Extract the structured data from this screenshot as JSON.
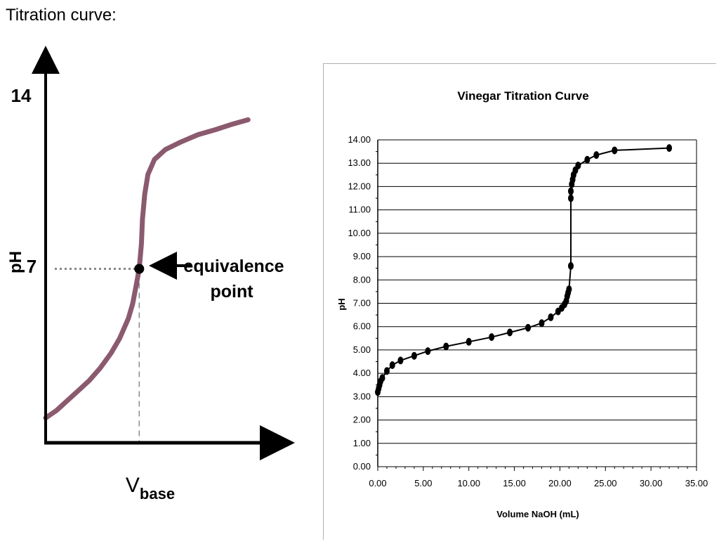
{
  "slide": {
    "title": "Titration curve:"
  },
  "chart_data": [
    {
      "type": "line",
      "kind": "schematic",
      "ylabel": "pH",
      "xlabel_main": "V",
      "xlabel_sub": "base",
      "y_ticks": [
        "14",
        "7"
      ],
      "annotation": {
        "line1": "equivalence",
        "line2": "point"
      },
      "equivalence": {
        "x": 0.43,
        "y": 7
      },
      "line_color": "#8b5a6e",
      "curve": [
        [
          0,
          1.0
        ],
        [
          0.05,
          1.3
        ],
        [
          0.1,
          1.7
        ],
        [
          0.15,
          2.1
        ],
        [
          0.2,
          2.5
        ],
        [
          0.25,
          3.0
        ],
        [
          0.3,
          3.6
        ],
        [
          0.34,
          4.2
        ],
        [
          0.38,
          5.0
        ],
        [
          0.4,
          5.6
        ],
        [
          0.415,
          6.3
        ],
        [
          0.43,
          7.0
        ],
        [
          0.44,
          8.0
        ],
        [
          0.445,
          9.0
        ],
        [
          0.455,
          10.0
        ],
        [
          0.47,
          10.8
        ],
        [
          0.5,
          11.4
        ],
        [
          0.55,
          11.8
        ],
        [
          0.62,
          12.1
        ],
        [
          0.7,
          12.4
        ],
        [
          0.78,
          12.6
        ],
        [
          0.85,
          12.8
        ],
        [
          0.93,
          13.0
        ]
      ]
    },
    {
      "type": "line",
      "title": "Vinegar Titration Curve",
      "xlabel": "Volume NaOH (mL)",
      "ylabel": "pH",
      "xlim": [
        0,
        35
      ],
      "ylim": [
        0,
        14
      ],
      "grid": true,
      "x_ticks": [
        "0.00",
        "5.00",
        "10.00",
        "15.00",
        "20.00",
        "25.00",
        "30.00",
        "35.00"
      ],
      "y_ticks": [
        "0.00",
        "1.00",
        "2.00",
        "3.00",
        "4.00",
        "5.00",
        "6.00",
        "7.00",
        "8.00",
        "9.00",
        "10.00",
        "11.00",
        "12.00",
        "13.00",
        "14.00"
      ],
      "series": [
        {
          "x": [
            0.0,
            0.1,
            0.2,
            0.3,
            0.5,
            1.0,
            1.6,
            2.5,
            4.0,
            5.5,
            7.5,
            10.0,
            12.5,
            14.5,
            16.5,
            18.0,
            19.0,
            19.8,
            20.2,
            20.5,
            20.7,
            20.8,
            20.9,
            21.0,
            21.2,
            21.2,
            21.2,
            21.3,
            21.4,
            21.5,
            21.7,
            22.0,
            23.0,
            24.0,
            26.0,
            32.0
          ],
          "y": [
            3.2,
            3.35,
            3.5,
            3.65,
            3.8,
            4.1,
            4.35,
            4.55,
            4.75,
            4.95,
            5.15,
            5.35,
            5.55,
            5.75,
            5.95,
            6.15,
            6.4,
            6.65,
            6.8,
            6.95,
            7.1,
            7.3,
            7.45,
            7.6,
            8.6,
            11.5,
            11.8,
            12.1,
            12.3,
            12.5,
            12.7,
            12.9,
            13.15,
            13.35,
            13.55,
            13.65
          ]
        }
      ]
    }
  ]
}
